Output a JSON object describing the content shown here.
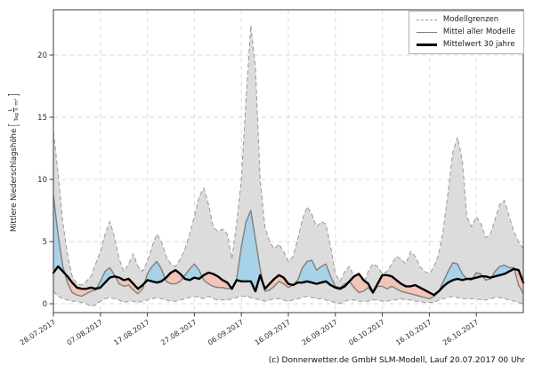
{
  "figure": {
    "ylabel": {
      "text": "Mittlere Niederschlagshöhe",
      "unit_numerator": "L",
      "unit_denominator": "Tag × m²"
    },
    "legend": [
      {
        "label": "Modellgrenzen",
        "style": "dashed-gray"
      },
      {
        "label": "Mittel aller Modelle",
        "style": "solid-gray"
      },
      {
        "label": "Mittelwert 30 jahre",
        "style": "solid-black"
      }
    ],
    "copyright": "(c) Donnerwetter.de GmbH SLM-Modell, Lauf 20.07.2017 00 Uhr"
  },
  "colors": {
    "band_fill": "#dcdcdc",
    "band_edge": "#999999",
    "above_mean_fill": "#a8d2e8",
    "below_mean_fill": "#f2c5b8",
    "model_mean_line": "#7f7f7f",
    "mean30_line": "#000000",
    "grid": "#d8d8d8",
    "spine": "#3c3c3c",
    "tick_label": "#2b2b2b"
  },
  "chart_data": {
    "type": "line",
    "title": "",
    "xlabel": "",
    "ylabel": "Mittlere Niederschlagshöhe [L/(Tag × m²)]",
    "grid": true,
    "legend_position": "upper right",
    "x_unit": "days since 28.07.2017, daily values, range 28.07.2017 - 05.11.2017",
    "x_range": [
      0,
      100
    ],
    "x_tick_positions": [
      0,
      10,
      20,
      30,
      40,
      50,
      60,
      70,
      80,
      90
    ],
    "x_tick_labels": [
      "28.07.2017",
      "07.08.2017",
      "17.08.2017",
      "27.08.2017",
      "06.09.2017",
      "16.09.2017",
      "26.09.2017",
      "06.10.2017",
      "16.10.2017",
      "26.10.2017"
    ],
    "yticks": [
      0,
      5,
      10,
      15,
      20
    ],
    "ylim": [
      -0.72,
      23.6
    ],
    "series": [
      {
        "name": "Modellgrenzen (obere Grenze)",
        "role": "upper_bound",
        "values": [
          13.8,
          10.5,
          6.5,
          4.0,
          2.2,
          1.6,
          1.5,
          1.8,
          2.2,
          3.2,
          4.2,
          5.6,
          6.6,
          5.4,
          3.6,
          2.6,
          3.2,
          4.0,
          3.0,
          2.6,
          3.4,
          4.6,
          5.6,
          5.0,
          3.8,
          3.2,
          3.0,
          3.6,
          4.4,
          5.6,
          7.0,
          8.6,
          9.3,
          8.0,
          6.2,
          5.8,
          6.0,
          5.6,
          3.6,
          6.5,
          10.0,
          16.5,
          22.4,
          19.0,
          10.0,
          6.2,
          5.0,
          4.4,
          4.8,
          4.2,
          3.4,
          3.8,
          5.2,
          6.8,
          7.8,
          7.2,
          6.2,
          6.6,
          6.4,
          4.6,
          2.4,
          1.8,
          2.6,
          3.0,
          2.2,
          1.3,
          1.6,
          2.6,
          3.2,
          3.0,
          2.4,
          2.6,
          3.2,
          3.8,
          3.6,
          3.2,
          4.2,
          3.8,
          3.0,
          2.6,
          2.4,
          3.0,
          4.0,
          6.0,
          9.0,
          12.2,
          13.4,
          11.5,
          7.0,
          6.2,
          7.0,
          6.4,
          5.3,
          5.6,
          6.8,
          8.0,
          8.3,
          7.0,
          5.8,
          5.0,
          4.4
        ]
      },
      {
        "name": "Modellgrenzen (untere Grenze)",
        "role": "lower_bound",
        "values": [
          1.0,
          0.6,
          0.4,
          0.3,
          0.2,
          0.2,
          0.1,
          0.0,
          -0.2,
          -0.1,
          0.2,
          0.4,
          0.5,
          0.4,
          0.3,
          0.1,
          0.2,
          0.2,
          0.1,
          0.2,
          0.3,
          0.4,
          0.5,
          0.4,
          0.3,
          0.2,
          0.2,
          0.3,
          0.4,
          0.5,
          0.6,
          0.5,
          0.4,
          0.6,
          0.4,
          0.3,
          0.3,
          0.3,
          0.4,
          0.5,
          0.6,
          0.6,
          0.5,
          0.4,
          0.3,
          0.2,
          0.3,
          0.4,
          0.4,
          0.3,
          0.2,
          0.3,
          0.4,
          0.5,
          0.6,
          0.5,
          0.4,
          0.4,
          0.3,
          0.2,
          0.1,
          0.0,
          0.2,
          0.3,
          0.3,
          0.2,
          0.2,
          0.2,
          0.3,
          0.3,
          0.2,
          0.2,
          0.3,
          0.3,
          0.4,
          0.3,
          0.3,
          0.2,
          0.2,
          0.1,
          0.1,
          0.1,
          0.3,
          0.4,
          0.5,
          0.6,
          0.5,
          0.4,
          0.4,
          0.4,
          0.4,
          0.3,
          0.3,
          0.4,
          0.5,
          0.5,
          0.4,
          0.3,
          0.2,
          0.1,
          0.0
        ]
      },
      {
        "name": "Mittel aller Modelle",
        "role": "model_mean",
        "values": [
          8.7,
          5.5,
          3.0,
          1.7,
          0.9,
          0.7,
          0.6,
          0.8,
          1.0,
          1.1,
          1.8,
          2.6,
          2.9,
          2.3,
          1.6,
          1.4,
          1.5,
          1.1,
          0.8,
          1.2,
          2.4,
          3.0,
          3.4,
          2.8,
          1.8,
          1.6,
          1.6,
          1.8,
          2.3,
          2.8,
          3.2,
          2.7,
          1.9,
          1.6,
          1.4,
          1.3,
          1.3,
          1.2,
          1.2,
          2.0,
          4.6,
          6.6,
          7.5,
          5.2,
          2.8,
          1.0,
          1.1,
          1.4,
          1.8,
          1.6,
          1.3,
          1.5,
          1.9,
          2.9,
          3.4,
          3.5,
          2.7,
          3.0,
          3.2,
          2.2,
          1.4,
          1.3,
          1.6,
          1.8,
          1.3,
          0.9,
          1.0,
          1.3,
          0.85,
          1.4,
          1.4,
          1.2,
          1.4,
          1.2,
          1.0,
          0.9,
          0.8,
          0.7,
          0.6,
          0.5,
          0.4,
          0.6,
          1.0,
          1.8,
          2.6,
          3.3,
          3.2,
          2.4,
          2.0,
          1.9,
          2.5,
          2.4,
          1.9,
          2.0,
          2.6,
          3.0,
          3.1,
          2.9,
          2.9,
          1.5,
          0.8
        ]
      },
      {
        "name": "Mittelwert 30 jahre",
        "role": "mean_30_years",
        "values": [
          2.5,
          3.0,
          2.6,
          2.2,
          1.7,
          1.3,
          1.2,
          1.2,
          1.3,
          1.2,
          1.3,
          1.7,
          2.1,
          2.2,
          2.1,
          1.9,
          2.0,
          1.6,
          1.2,
          1.5,
          1.9,
          1.8,
          1.7,
          1.8,
          2.1,
          2.5,
          2.7,
          2.4,
          2.0,
          1.9,
          2.1,
          2.0,
          2.3,
          2.5,
          2.4,
          2.2,
          1.9,
          1.7,
          1.2,
          1.9,
          1.8,
          1.8,
          1.8,
          1.0,
          2.3,
          1.2,
          1.6,
          2.0,
          2.3,
          2.1,
          1.6,
          1.5,
          1.7,
          1.7,
          1.8,
          1.7,
          1.6,
          1.7,
          1.8,
          1.5,
          1.3,
          1.2,
          1.4,
          1.8,
          2.2,
          2.4,
          1.9,
          1.6,
          0.9,
          1.6,
          2.3,
          2.3,
          2.2,
          1.9,
          1.6,
          1.4,
          1.4,
          1.5,
          1.3,
          1.1,
          0.9,
          0.7,
          1.0,
          1.4,
          1.7,
          1.9,
          2.0,
          1.9,
          2.0,
          2.0,
          2.1,
          2.2,
          2.2,
          2.1,
          2.2,
          2.3,
          2.4,
          2.6,
          2.8,
          2.7,
          1.7
        ]
      }
    ]
  }
}
